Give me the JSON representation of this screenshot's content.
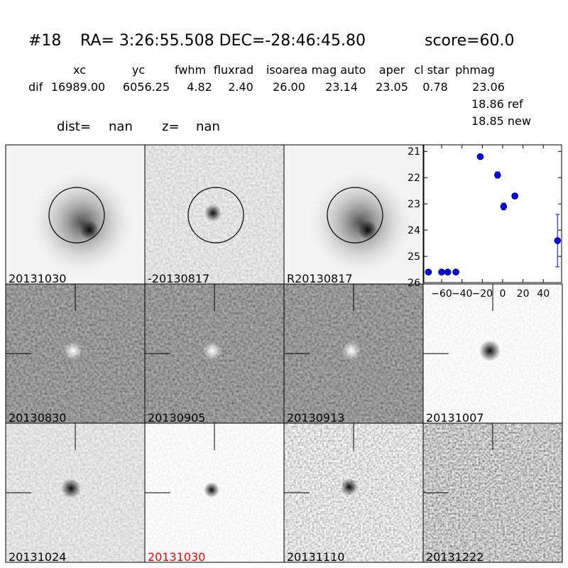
{
  "header": {
    "id": "#18",
    "coords": "RA= 3:26:55.508 DEC=-28:46:45.80",
    "score": "score=60.0",
    "columns": [
      "xc",
      "yc",
      "fwhm",
      "fluxrad",
      "isoarea",
      "mag auto",
      "aper",
      "cl star",
      "phmag"
    ],
    "row_label": "dif",
    "row_values": [
      "16989.00",
      "6056.25",
      "4.82",
      "2.40",
      "26.00",
      "23.14",
      "23.05",
      "0.78",
      "23.06"
    ],
    "ref": "18.86 ref",
    "new": "18.85 new",
    "dist_label": "dist=",
    "dist_value": "nan",
    "z_label": "z=",
    "z_value": "nan"
  },
  "panels": [
    "20131030",
    "-20130817",
    "R20130817",
    "20130830",
    "20130905",
    "20130913",
    "20131007",
    "20131024",
    "20131030",
    "20131110",
    "20131222"
  ],
  "chart_data": {
    "type": "scatter",
    "x": [
      -73,
      -60,
      -54,
      -46,
      -22,
      -5,
      1,
      12,
      54
    ],
    "values": [
      25.6,
      25.6,
      25.6,
      25.6,
      21.2,
      21.9,
      23.1,
      22.7,
      24.4
    ],
    "errors": [
      0.05,
      0.05,
      0.05,
      0.05,
      0.05,
      0.12,
      0.13,
      0.1,
      1.0
    ],
    "color": "#0000ff",
    "xlim": [
      -77.5,
      58
    ],
    "ylim": [
      20.75,
      26
    ],
    "y_inverted": true,
    "xticks": [
      {
        "value": -60,
        "label": "−60"
      },
      {
        "value": -40,
        "label": "−40"
      },
      {
        "value": -20,
        "label": "−20"
      },
      0,
      20,
      40
    ],
    "yticks": [
      21,
      22,
      23,
      24,
      25,
      26
    ]
  }
}
